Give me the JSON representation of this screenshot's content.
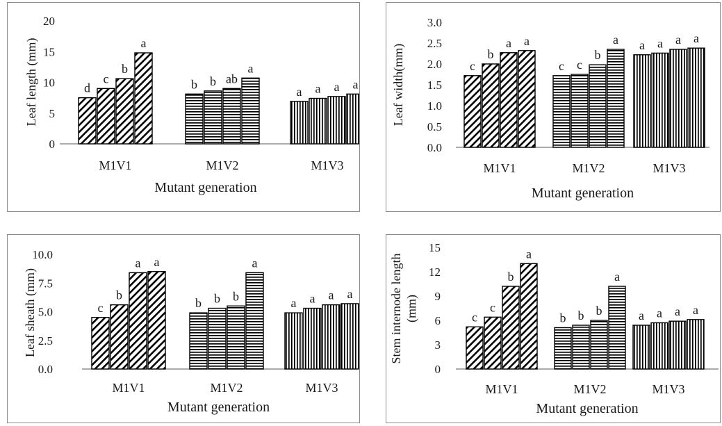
{
  "chart_data": [
    {
      "type": "bar",
      "title": "",
      "xlabel": "Mutant generation",
      "ylabel": "Leaf length (mm)",
      "ylim": [
        0,
        20
      ],
      "yticks": [
        "0",
        "5",
        "10",
        "15",
        "20"
      ],
      "categories": [
        "M1V1",
        "M1V2",
        "M1V3"
      ],
      "values": [
        [
          7.5,
          9.0,
          10.6,
          14.8
        ],
        [
          8.1,
          8.6,
          9.0,
          10.7
        ],
        [
          6.9,
          7.4,
          7.7,
          8.1
        ]
      ],
      "letters": [
        [
          "d",
          "c",
          "b",
          "a"
        ],
        [
          "b",
          "b",
          "ab",
          "a"
        ],
        [
          "a",
          "a",
          "a",
          "a"
        ]
      ],
      "grid": false,
      "legend": "none"
    },
    {
      "type": "bar",
      "title": "",
      "xlabel": "Mutant generation",
      "ylabel": "Leaf width(mm)",
      "ylim": [
        0,
        3
      ],
      "yticks": [
        "0.0",
        "0.5",
        "1.0",
        "1.5",
        "2.0",
        "2.5",
        "3.0"
      ],
      "categories": [
        "M1V1",
        "M1V2",
        "M1V3"
      ],
      "values": [
        [
          1.72,
          2.0,
          2.27,
          2.32
        ],
        [
          1.72,
          1.75,
          1.98,
          2.35
        ],
        [
          2.22,
          2.26,
          2.35,
          2.38
        ]
      ],
      "letters": [
        [
          "c",
          "b",
          "a",
          "a"
        ],
        [
          "c",
          "c",
          "b",
          "a"
        ],
        [
          "a",
          "a",
          "a",
          "a"
        ]
      ],
      "grid": false,
      "legend": "none"
    },
    {
      "type": "bar",
      "title": "",
      "xlabel": "Mutant generation",
      "ylabel": "Leaf sheath (mm)",
      "ylim": [
        0,
        10
      ],
      "yticks": [
        "0.0",
        "2.5",
        "5.0",
        "7.5",
        "10.0"
      ],
      "categories": [
        "M1V1",
        "M1V2",
        "M1V3"
      ],
      "values": [
        [
          4.5,
          5.6,
          8.4,
          8.5
        ],
        [
          4.9,
          5.3,
          5.5,
          8.4
        ],
        [
          4.9,
          5.3,
          5.6,
          5.7
        ]
      ],
      "letters": [
        [
          "c",
          "b",
          "a",
          "a"
        ],
        [
          "b",
          "b",
          "b",
          "a"
        ],
        [
          "a",
          "a",
          "a",
          "a"
        ]
      ],
      "grid": false,
      "legend": "none"
    },
    {
      "type": "bar",
      "title": "",
      "xlabel": "Mutant generation",
      "ylabel": "Stem internode length (mm)",
      "ylabel_lines": [
        "Stem internode length",
        "(mm)"
      ],
      "ylim": [
        0,
        15
      ],
      "yticks": [
        "0",
        "3",
        "6",
        "9",
        "12",
        "15"
      ],
      "categories": [
        "M1V1",
        "M1V2",
        "M1V3"
      ],
      "values": [
        [
          5.2,
          6.4,
          10.2,
          13.0
        ],
        [
          5.1,
          5.4,
          6.0,
          10.2
        ],
        [
          5.4,
          5.7,
          5.9,
          6.1
        ]
      ],
      "letters": [
        [
          "c",
          "c",
          "b",
          "a"
        ],
        [
          "b",
          "b",
          "b",
          "a"
        ],
        [
          "a",
          "a",
          "a",
          "a"
        ]
      ],
      "grid": false,
      "legend": "none"
    }
  ]
}
